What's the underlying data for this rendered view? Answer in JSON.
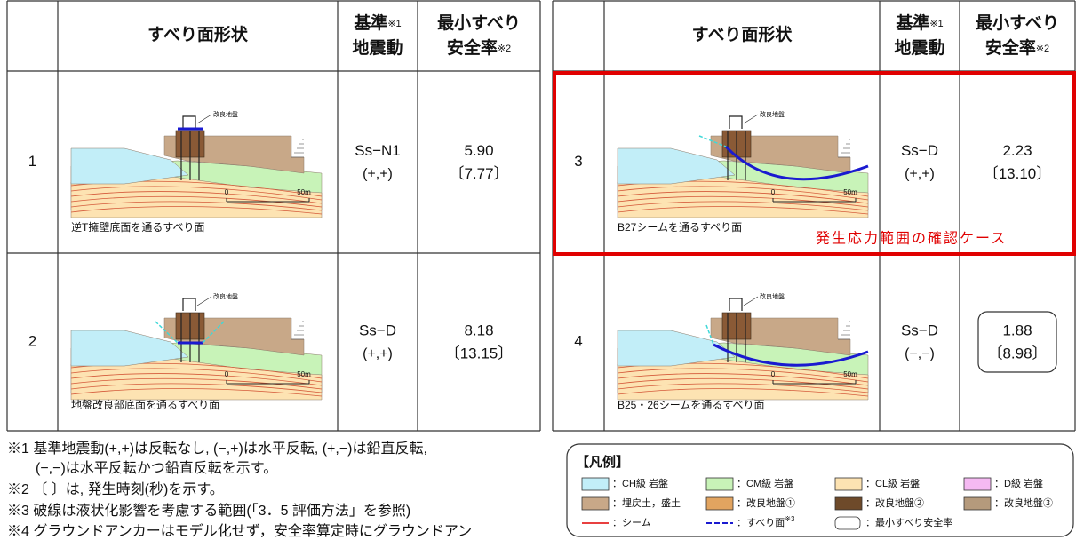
{
  "tables": [
    {
      "header": {
        "shape": "すべり面形状",
        "gm": "基準",
        "gm_note": "※1",
        "gm2": "地震動",
        "sf": "最小すべり",
        "sf2": "安全率",
        "sf_note": "※2"
      },
      "rows": [
        {
          "no": "1",
          "caption": "逆T擁壁底面を通るすべり面",
          "improved": "改良地盤",
          "scale0": "0",
          "scale50": "50m",
          "gm": "Ss−N1",
          "sign": "(+,+)",
          "sf": "5.90",
          "time": "〔7.77〕"
        },
        {
          "no": "2",
          "caption": "地盤改良部底面を通るすべり面",
          "improved": "改良地盤",
          "scale0": "0",
          "scale50": "50m",
          "gm": "Ss−D",
          "sign": "(+,+)",
          "sf": "8.18",
          "time": "〔13.15〕"
        }
      ]
    },
    {
      "header": {
        "shape": "すべり面形状",
        "gm": "基準",
        "gm_note": "※1",
        "gm2": "地震動",
        "sf": "最小すべり",
        "sf2": "安全率",
        "sf_note": "※2"
      },
      "rows": [
        {
          "no": "3",
          "caption": "B27シームを通るすべり面",
          "improved": "改良地盤",
          "scale0": "0",
          "scale50": "50m",
          "gm": "Ss−D",
          "sign": "(+,+)",
          "sf": "2.23",
          "time": "〔13.10〕"
        },
        {
          "no": "4",
          "caption": "B25・26シームを通るすべり面",
          "improved": "改良地盤",
          "scale0": "0",
          "scale50": "50m",
          "gm": "Ss−D",
          "sign": "(−,−)",
          "sf": "1.88",
          "time": "〔8.98〕"
        }
      ]
    }
  ],
  "annotation": "発生応力範囲の確認ケース",
  "notes": [
    "※1 基準地震動(+,+)は反転なし, (−,+)は水平反転, (+,−)は鉛直反転,",
    "(−,−)は水平反転かつ鉛直反転を示す。",
    "※2 〔 〕は, 発生時刻(秒)を示す。",
    "※3 破線は液状化影響を考慮する範囲(「3．5 評価方法」を参照)",
    "※4 グラウンドアンカーはモデル化せず，安全率算定時にグラウンドアン"
  ],
  "legend": {
    "title": "【凡例】",
    "items": [
      {
        "label": "：CH級 岩盤"
      },
      {
        "label": "：CM級 岩盤"
      },
      {
        "label": "：CL級 岩盤"
      },
      {
        "label": "：D級 岩盤"
      },
      {
        "label": "：埋戻土，盛土"
      },
      {
        "label": "：改良地盤①"
      },
      {
        "label": "：改良地盤②"
      },
      {
        "label": "：改良地盤③"
      },
      {
        "label": "：シーム"
      },
      {
        "label": "：すべり面",
        "note": "※3"
      },
      {
        "label": "：最小すべり安全率"
      }
    ]
  }
}
